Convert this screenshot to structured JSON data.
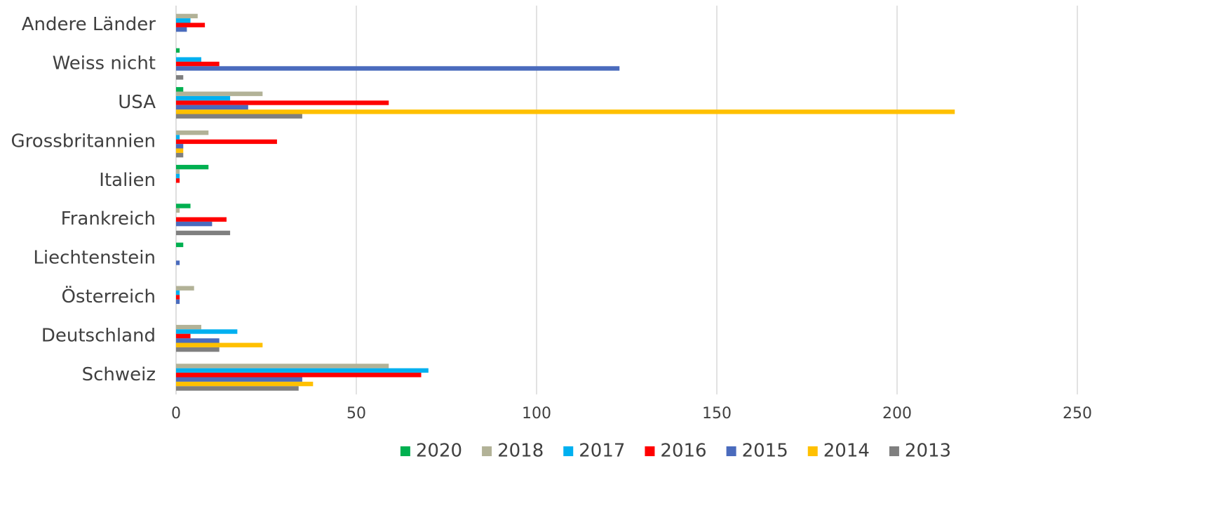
{
  "chart_data": {
    "type": "bar",
    "orientation": "horizontal",
    "categories": [
      "Andere Länder",
      "Weiss nicht",
      "USA",
      "Grossbritannien",
      "Italien",
      "Frankreich",
      "Liechtenstein",
      "Österreich",
      "Deutschland",
      "Schweiz"
    ],
    "series": [
      {
        "name": "2020",
        "color": "#00b050",
        "values": [
          0,
          1,
          2,
          0,
          9,
          4,
          2,
          0,
          0,
          0
        ]
      },
      {
        "name": "2018",
        "color": "#b2b297",
        "values": [
          6,
          0,
          24,
          9,
          1,
          1,
          0,
          5,
          7,
          59
        ]
      },
      {
        "name": "2017",
        "color": "#00b0f0",
        "values": [
          4,
          7,
          15,
          1,
          1,
          0,
          0,
          1,
          17,
          70
        ]
      },
      {
        "name": "2016",
        "color": "#ff0000",
        "values": [
          8,
          12,
          59,
          28,
          1,
          14,
          0,
          1,
          4,
          68
        ]
      },
      {
        "name": "2015",
        "color": "#4a6bbd",
        "values": [
          3,
          123,
          20,
          2,
          0,
          10,
          1,
          1,
          12,
          35
        ]
      },
      {
        "name": "2014",
        "color": "#ffc000",
        "values": [
          0,
          0,
          216,
          2,
          0,
          0,
          0,
          0,
          24,
          38
        ]
      },
      {
        "name": "2013",
        "color": "#7f7f7f",
        "values": [
          0,
          2,
          35,
          2,
          0,
          15,
          0,
          0,
          12,
          34
        ]
      }
    ],
    "xlim": [
      0,
      250
    ],
    "xticks": [
      0,
      50,
      100,
      150,
      200,
      250
    ],
    "grid": true,
    "legend": "bottom"
  }
}
